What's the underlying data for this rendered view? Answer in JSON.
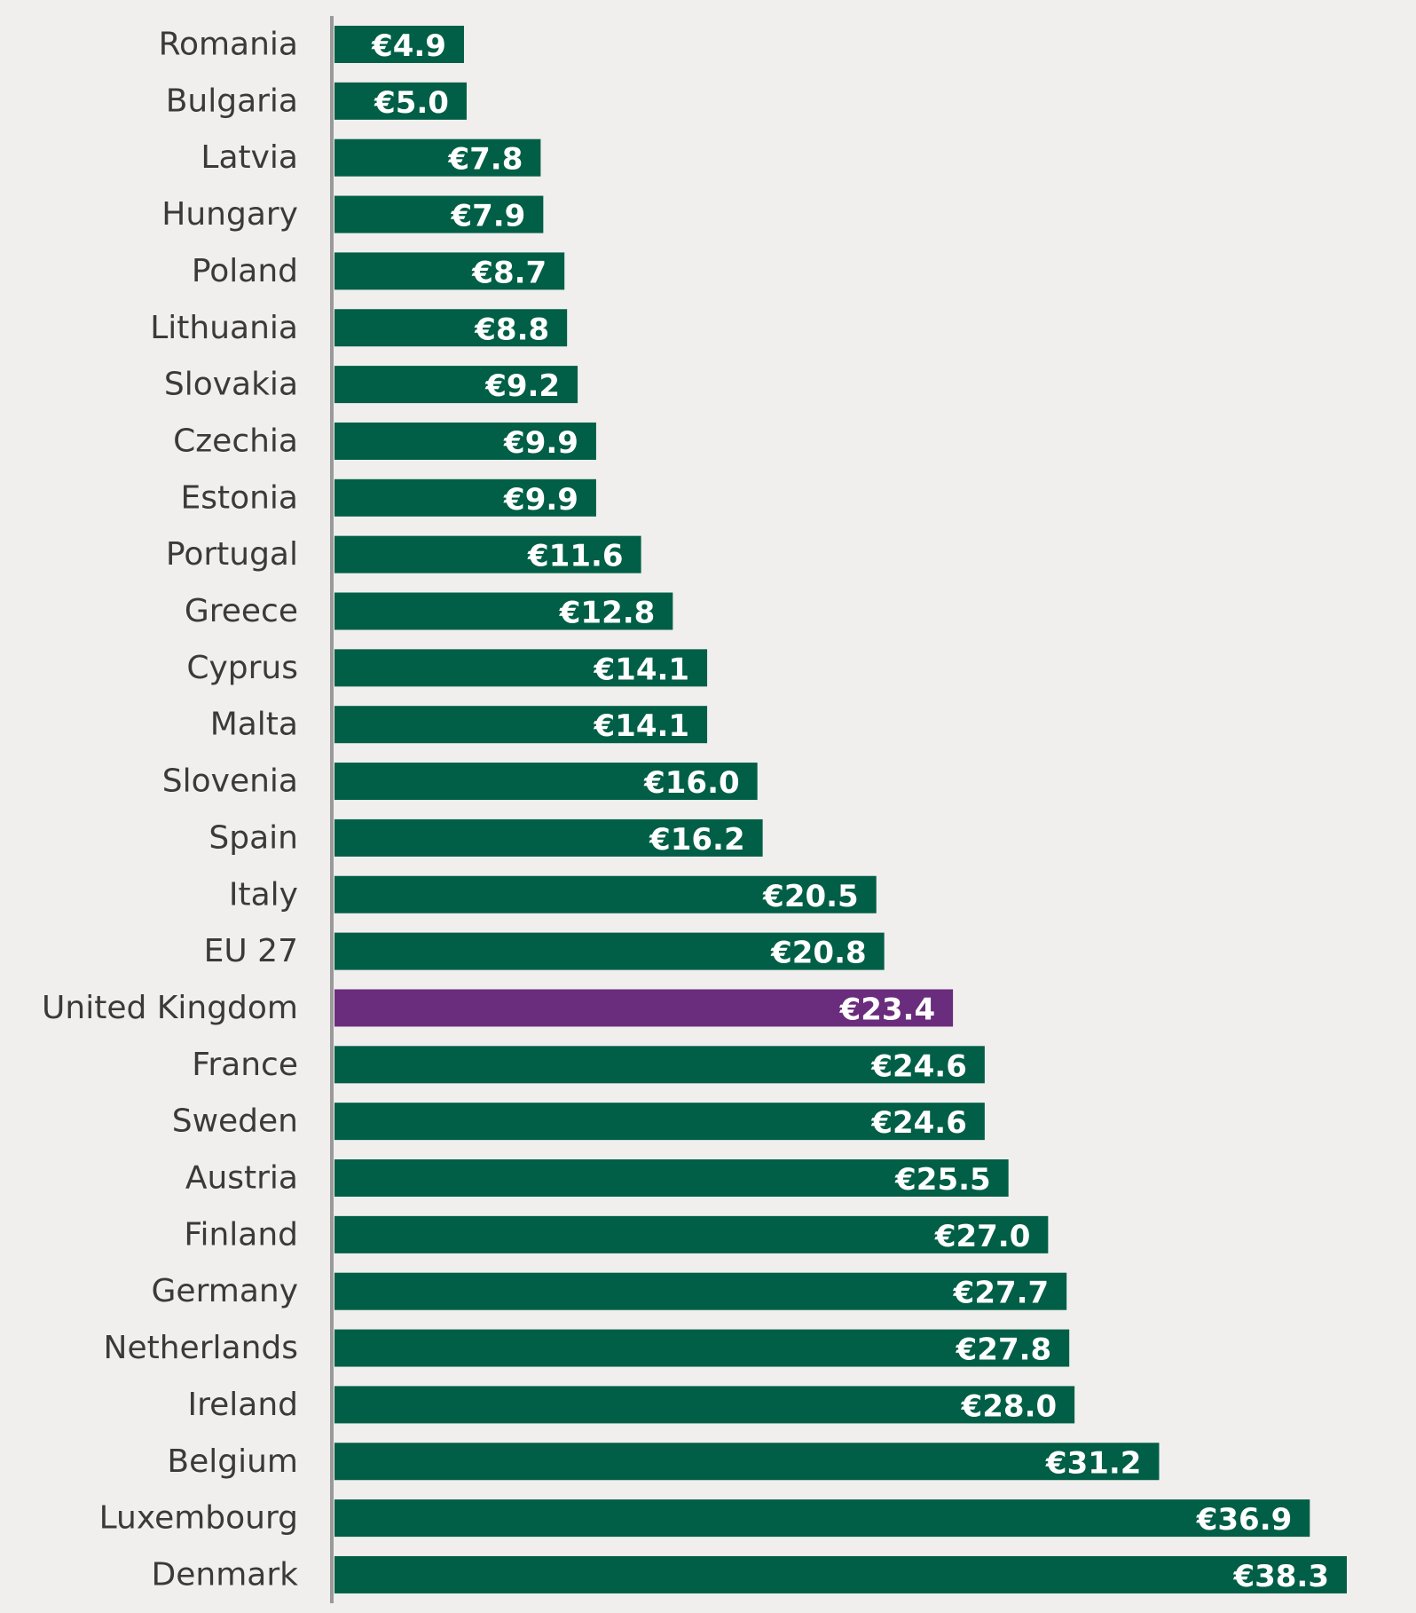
{
  "chart_data": {
    "type": "bar",
    "orientation": "horizontal",
    "title": "",
    "xlabel": "",
    "ylabel": "",
    "xlim": [
      0,
      38.3
    ],
    "grid": false,
    "value_prefix": "€",
    "default_color": "#005f46",
    "highlight_color": "#6a2c7c",
    "highlight_category": "United Kingdom",
    "categories": [
      "Romania",
      "Bulgaria",
      "Latvia",
      "Hungary",
      "Poland",
      "Lithuania",
      "Slovakia",
      "Czechia",
      "Estonia",
      "Portugal",
      "Greece",
      "Cyprus",
      "Malta",
      "Slovenia",
      "Spain",
      "Italy",
      "EU 27",
      "United Kingdom",
      "France",
      "Sweden",
      "Austria",
      "Finland",
      "Germany",
      "Netherlands",
      "Ireland",
      "Belgium",
      "Luxembourg",
      "Denmark"
    ],
    "values": [
      4.9,
      5.0,
      7.8,
      7.9,
      8.7,
      8.8,
      9.2,
      9.9,
      9.9,
      11.6,
      12.8,
      14.1,
      14.1,
      16.0,
      16.2,
      20.5,
      20.8,
      23.4,
      24.6,
      24.6,
      25.5,
      27.0,
      27.7,
      27.8,
      28.0,
      31.2,
      36.9,
      38.3
    ],
    "value_labels": [
      "€4.9",
      "€5.0",
      "€7.8",
      "€7.9",
      "€8.7",
      "€8.8",
      "€9.2",
      "€9.9",
      "€9.9",
      "€11.6",
      "€12.8",
      "€14.1",
      "€14.1",
      "€16.0",
      "€16.2",
      "€20.5",
      "€20.8",
      "€23.4",
      "€24.6",
      "€24.6",
      "€25.5",
      "€27.0",
      "€27.7",
      "€27.8",
      "€28.0",
      "€31.2",
      "€36.9",
      "€38.3"
    ]
  }
}
